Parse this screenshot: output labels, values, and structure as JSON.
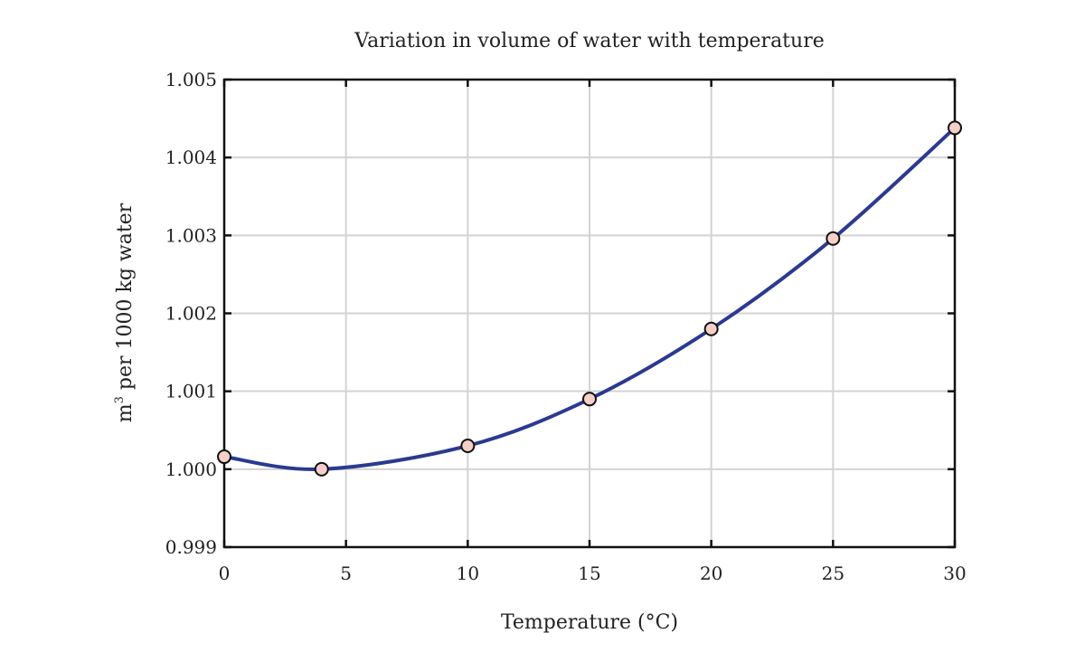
{
  "chart_data": {
    "type": "line",
    "title": "Variation in volume of water with temperature",
    "xlabel": "Temperature (°C)",
    "ylabel_main": "m",
    "ylabel_sup": "3",
    "ylabel_rest": " per 1000 kg water",
    "xlim": [
      0,
      30
    ],
    "ylim": [
      0.999,
      1.005
    ],
    "xticks": [
      0,
      5,
      10,
      15,
      20,
      25,
      30
    ],
    "xtick_labels": [
      "0",
      "5",
      "10",
      "15",
      "20",
      "25",
      "30"
    ],
    "yticks": [
      0.999,
      1.0,
      1.001,
      1.002,
      1.003,
      1.004,
      1.005
    ],
    "ytick_labels": [
      "0.999",
      "1.000",
      "1.001",
      "1.002",
      "1.003",
      "1.004",
      "1.005"
    ],
    "grid": true,
    "series": [
      {
        "x": [
          0,
          4,
          10,
          15,
          20,
          25,
          30
        ],
        "y": [
          1.00016,
          1.0,
          1.0003,
          1.0009,
          1.0018,
          1.00296,
          1.00438
        ]
      }
    ],
    "colors": {
      "line": "#2b3a8f",
      "marker_fill": "#f6cfc9",
      "marker_edge": "#111111"
    }
  }
}
